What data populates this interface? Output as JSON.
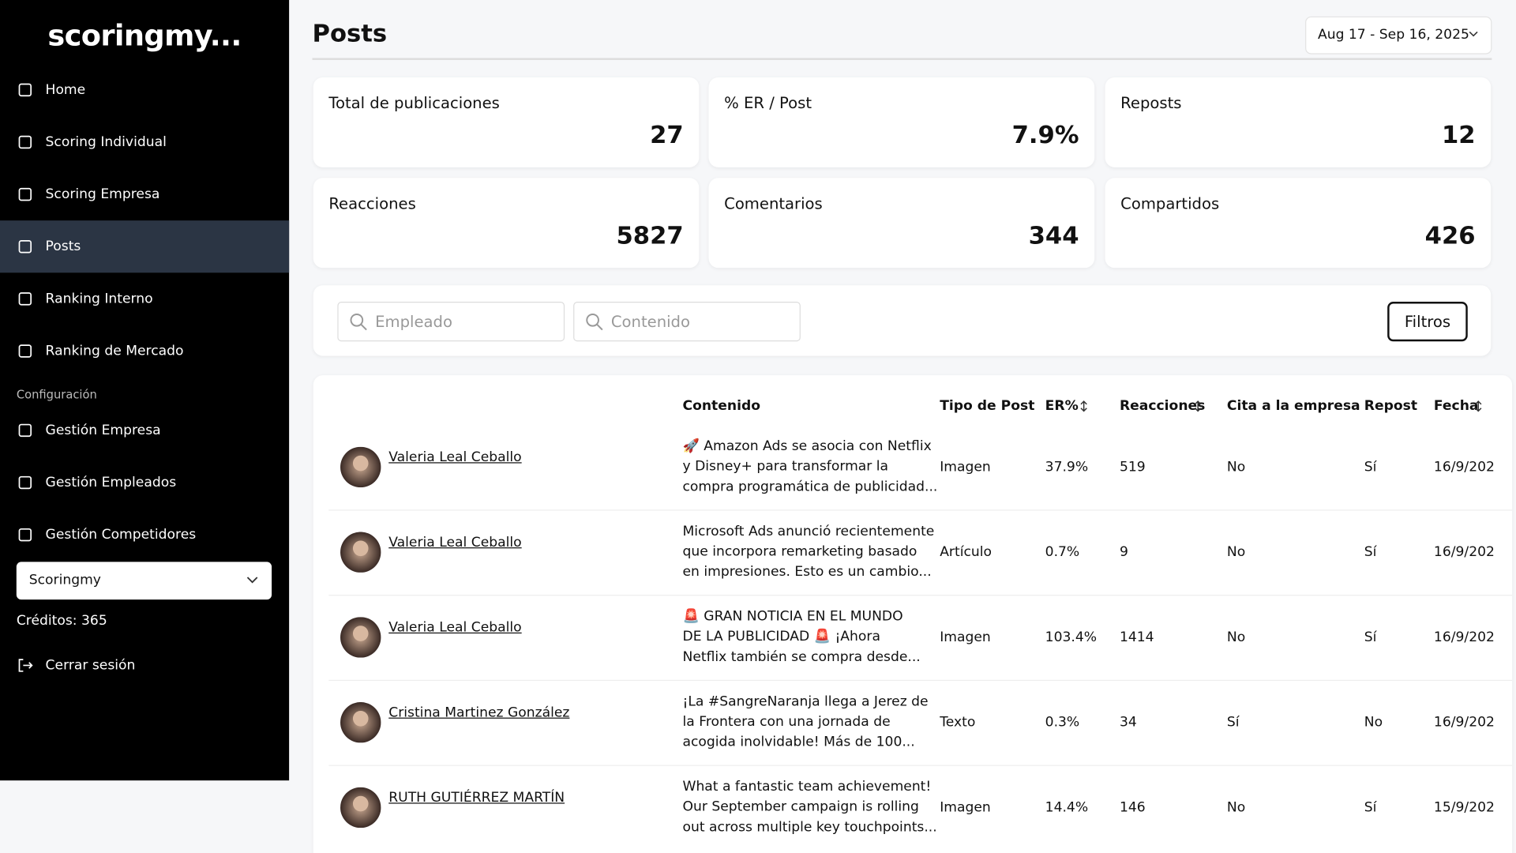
{
  "sidebar": {
    "logo": "scoringmy...",
    "nav": [
      "Home",
      "Scoring Individual",
      "Scoring Empresa",
      "Posts",
      "Ranking Interno",
      "Ranking de Mercado"
    ],
    "config_label": "Configuración",
    "config_nav": [
      "Gestión Empresa",
      "Gestión Empleados",
      "Gestión Competidores"
    ],
    "company_select": "Scoringmy",
    "credits": "Créditos: 365",
    "logout": "Cerrar sesión"
  },
  "header": {
    "title": "Posts",
    "date_range": "Aug 17 - Sep 16, 2025"
  },
  "stats": [
    {
      "label": "Total de publicaciones",
      "value": "27"
    },
    {
      "label": "% ER / Post",
      "value": "7.9%"
    },
    {
      "label": "Reposts",
      "value": "12"
    },
    {
      "label": "Reacciones",
      "value": "5827"
    },
    {
      "label": "Comentarios",
      "value": "344"
    },
    {
      "label": "Compartidos",
      "value": "426"
    }
  ],
  "filters": {
    "employee_placeholder": "Empleado",
    "content_placeholder": "Contenido",
    "button": "Filtros"
  },
  "table": {
    "headers": [
      "Contenido",
      "Tipo de Post",
      "ER%",
      "Reacciones",
      "Cita a la empresa",
      "Repost",
      "Fecha"
    ],
    "rows": [
      {
        "name": "Valeria Leal Ceballo",
        "content": [
          "🚀 Amazon Ads se asocia con Netflix",
          "y Disney+ para transformar la",
          "compra programática de publicidad..."
        ],
        "type": "Imagen",
        "er": "37.9%",
        "reactions": "519",
        "cita": "No",
        "repost": "Sí",
        "date": "16/9/202"
      },
      {
        "name": "Valeria Leal Ceballo",
        "content": [
          "Microsoft Ads anunció recientemente",
          "que incorpora remarketing basado",
          "en impresiones. Esto es un cambio..."
        ],
        "type": "Artículo",
        "er": "0.7%",
        "reactions": "9",
        "cita": "No",
        "repost": "Sí",
        "date": "16/9/202"
      },
      {
        "name": "Valeria Leal Ceballo",
        "content": [
          "🚨 GRAN NOTICIA EN EL MUNDO",
          "DE LA PUBLICIDAD 🚨 ¡Ahora",
          "Netflix también se compra desde..."
        ],
        "type": "Imagen",
        "er": "103.4%",
        "reactions": "1414",
        "cita": "No",
        "repost": "Sí",
        "date": "16/9/202"
      },
      {
        "name": "Cristina Martinez González",
        "content": [
          "¡La #SangreNaranja llega a Jerez de",
          "la Frontera con una jornada de",
          "acogida inolvidable! Más de 100..."
        ],
        "type": "Texto",
        "er": "0.3%",
        "reactions": "34",
        "cita": "Sí",
        "repost": "No",
        "date": "16/9/202"
      },
      {
        "name": "RUTH GUTIÉRREZ MARTÍN",
        "content": [
          "What a fantastic team achievement!",
          "Our September campaign is rolling",
          "out across multiple key touchpoints..."
        ],
        "type": "Imagen",
        "er": "14.4%",
        "reactions": "146",
        "cita": "No",
        "repost": "Sí",
        "date": "15/9/202"
      }
    ]
  }
}
